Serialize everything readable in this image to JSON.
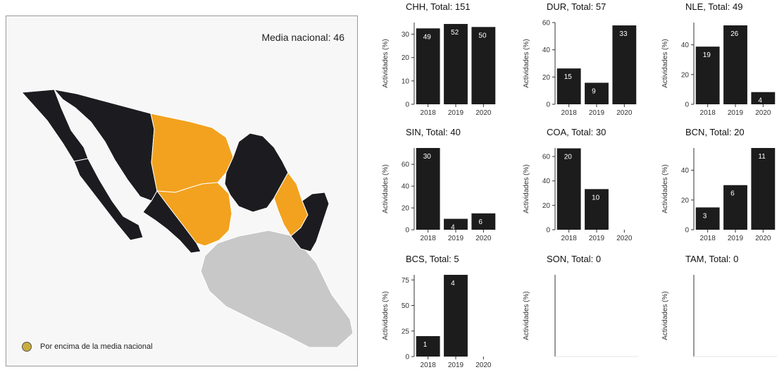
{
  "map": {
    "mean_label": "Media nacional: 46",
    "legend_label": "Por encima de la media nacional",
    "colors": {
      "above_mean": "#f2a21e",
      "below_mean": "#1c1c20",
      "no_data": "#c8c8c8",
      "legend_swatch": "#c9ad3d"
    },
    "above_mean_states": [
      "CHH",
      "DUR",
      "NLE"
    ],
    "below_mean_states": [
      "BCN",
      "BCS",
      "SON",
      "SIN",
      "COA",
      "TAM"
    ]
  },
  "chart_data": [
    {
      "type": "bar",
      "title": "CHH, Total: 151",
      "categories": [
        "2018",
        "2019",
        "2020"
      ],
      "values": [
        32.5,
        34.4,
        33.1
      ],
      "bar_labels": [
        "49",
        "52",
        "50"
      ],
      "ylabel": "Actividades (%)",
      "ylim": [
        0,
        35
      ],
      "yticks": [
        0,
        10,
        20,
        30
      ]
    },
    {
      "type": "bar",
      "title": "DUR, Total: 57",
      "categories": [
        "2018",
        "2019",
        "2020"
      ],
      "values": [
        26.3,
        15.8,
        57.9
      ],
      "bar_labels": [
        "15",
        "9",
        "33"
      ],
      "ylabel": "Actividades (%)",
      "ylim": [
        0,
        60
      ],
      "yticks": [
        0,
        20,
        40,
        60
      ]
    },
    {
      "type": "bar",
      "title": "NLE, Total: 49",
      "categories": [
        "2018",
        "2019",
        "2020"
      ],
      "values": [
        38.8,
        53.1,
        8.2
      ],
      "bar_labels": [
        "19",
        "26",
        "4"
      ],
      "ylabel": "Actividades (%)",
      "ylim": [
        0,
        55
      ],
      "yticks": [
        0,
        20,
        40
      ]
    },
    {
      "type": "bar",
      "title": "SIN, Total: 40",
      "categories": [
        "2018",
        "2019",
        "2020"
      ],
      "values": [
        75,
        10,
        15
      ],
      "bar_labels": [
        "30",
        "4",
        "6"
      ],
      "ylabel": "Actividades (%)",
      "ylim": [
        0,
        75
      ],
      "yticks": [
        0,
        20,
        40,
        60
      ]
    },
    {
      "type": "bar",
      "title": "COA, Total: 30",
      "categories": [
        "2018",
        "2019",
        "2020"
      ],
      "values": [
        66.7,
        33.3,
        0
      ],
      "bar_labels": [
        "20",
        "10",
        ""
      ],
      "ylabel": "Actividades (%)",
      "ylim": [
        0,
        67
      ],
      "yticks": [
        0,
        20,
        40,
        60
      ]
    },
    {
      "type": "bar",
      "title": "BCN, Total: 20",
      "categories": [
        "2018",
        "2019",
        "2020"
      ],
      "values": [
        15,
        30,
        55
      ],
      "bar_labels": [
        "3",
        "6",
        "11"
      ],
      "ylabel": "Actividades (%)",
      "ylim": [
        0,
        55
      ],
      "yticks": [
        0,
        20,
        40
      ]
    },
    {
      "type": "bar",
      "title": "BCS, Total: 5",
      "categories": [
        "2018",
        "2019",
        "2020"
      ],
      "values": [
        20,
        80,
        0
      ],
      "bar_labels": [
        "1",
        "4",
        ""
      ],
      "ylabel": "Actividades (%)",
      "ylim": [
        0,
        80
      ],
      "yticks": [
        0,
        25,
        50,
        75
      ]
    },
    {
      "type": "bar",
      "title": "SON, Total: 0",
      "categories": [],
      "values": [],
      "bar_labels": [],
      "ylabel": "Actividades (%)",
      "ylim": [
        0,
        1
      ],
      "yticks": []
    },
    {
      "type": "bar",
      "title": "TAM, Total: 0",
      "categories": [],
      "values": [],
      "bar_labels": [],
      "ylabel": "Actividades (%)",
      "ylim": [
        0,
        1
      ],
      "yticks": []
    }
  ]
}
